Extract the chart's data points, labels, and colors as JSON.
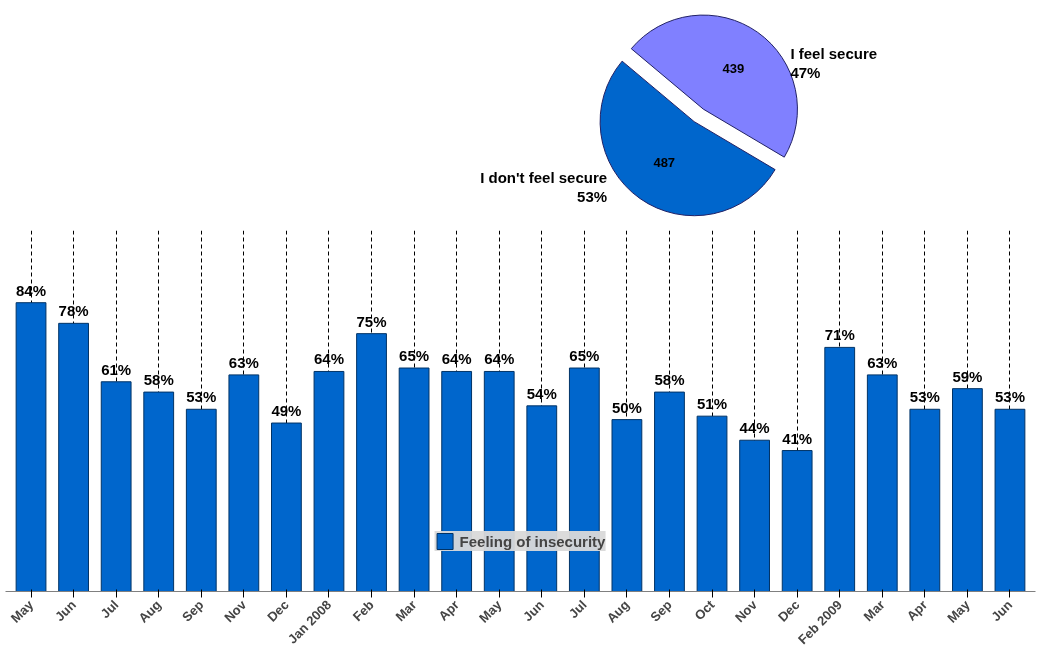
{
  "chart_data": [
    {
      "type": "bar",
      "categories": [
        "May",
        "Jun",
        "Jul",
        "Aug",
        "Sep",
        "Nov",
        "Dec",
        "Jan 2008",
        "Feb",
        "Mar",
        "Apr",
        "May",
        "Jun",
        "Jul",
        "Aug",
        "Sep",
        "Oct",
        "Nov",
        "Dec",
        "Feb 2009",
        "Mar",
        "Apr",
        "May",
        "Jun"
      ],
      "series": [
        {
          "name": "Feeling of insecurity",
          "color": "#0066cc",
          "values": [
            84,
            78,
            61,
            58,
            53,
            63,
            49,
            64,
            75,
            65,
            64,
            64,
            54,
            65,
            50,
            58,
            51,
            44,
            41,
            71,
            63,
            53,
            59,
            53
          ],
          "value_labels": [
            "84%",
            "78%",
            "61%",
            "58%",
            "53%",
            "63%",
            "49%",
            "64%",
            "75%",
            "65%",
            "64%",
            "64%",
            "54%",
            "65%",
            "50%",
            "58%",
            "51%",
            "44%",
            "41%",
            "71%",
            "63%",
            "53%",
            "59%",
            "53%"
          ]
        }
      ],
      "ylim": [
        0,
        105
      ],
      "tick_labels": "x",
      "grid": "x",
      "legend": "bottom"
    },
    {
      "type": "pie",
      "categories": [
        "I don't feel secure",
        "I feel secure"
      ],
      "values": [
        487,
        439
      ],
      "colors": [
        "#0066cc",
        "#8080ff"
      ],
      "data_labels": true,
      "annotations": [
        "53%",
        "47%"
      ]
    }
  ]
}
